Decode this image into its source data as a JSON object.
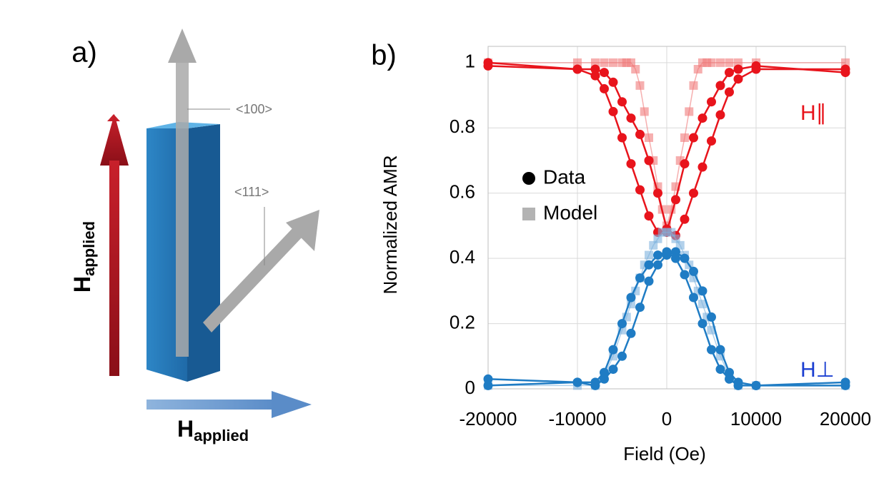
{
  "diagram": {
    "panel_label": "a)",
    "direction_100": "<100>",
    "direction_111": "<111>",
    "field_vertical": {
      "symbol": "H",
      "subscript": "applied"
    },
    "field_horizontal": {
      "symbol": "H",
      "subscript": "applied"
    }
  },
  "chart_data": {
    "type": "line",
    "panel_label": "b)",
    "x_label": "Field (Oe)",
    "y_label": "Normalized AMR",
    "xlim": [
      -20000,
      20000
    ],
    "ylim": [
      0,
      1.05
    ],
    "xticks": [
      -20000,
      -10000,
      0,
      10000,
      20000
    ],
    "yticks": [
      0,
      0.2,
      0.4,
      0.6,
      0.8,
      1
    ],
    "grid": true,
    "legend": [
      {
        "name": "Data",
        "marker": "circle",
        "color": "#000000"
      },
      {
        "name": "Model",
        "marker": "square",
        "color": "#b3b3b3"
      }
    ],
    "annotations": [
      {
        "text": "H∥",
        "color": "#e8141c"
      },
      {
        "text": "H⊥",
        "color": "#1b3fd1"
      }
    ],
    "series": [
      {
        "marker": "square",
        "color": "#f07a7a",
        "x": [
          -20000,
          -10000,
          -8000,
          -7000,
          -6000,
          -5000,
          -4500,
          -4000,
          -3500,
          -3000,
          -2500,
          -2000,
          -1500,
          -1000,
          -500,
          0,
          500,
          1000,
          1500,
          2000,
          2500,
          3000,
          3500,
          4000,
          4500,
          5000,
          6000,
          7000,
          8000,
          10000,
          20000
        ],
        "values": [
          1,
          1,
          1,
          1,
          1,
          1,
          1,
          1,
          0.98,
          0.93,
          0.85,
          0.77,
          0.7,
          0.62,
          0.55,
          0.5,
          0.55,
          0.62,
          0.7,
          0.77,
          0.85,
          0.93,
          0.98,
          1,
          1,
          1,
          1,
          1,
          1,
          1,
          1
        ]
      },
      {
        "marker": "circle",
        "color": "#e8141c",
        "x": [
          -20000,
          -10000,
          -8000,
          -7000,
          -6000,
          -5000,
          -4000,
          -3000,
          -2000,
          -1000,
          0,
          1000,
          2000,
          3000,
          4000,
          5000,
          6000,
          7000,
          8000,
          10000,
          20000
        ],
        "values": [
          1,
          0.98,
          0.98,
          0.97,
          0.94,
          0.88,
          0.83,
          0.78,
          0.7,
          0.6,
          0.49,
          0.47,
          0.52,
          0.6,
          0.68,
          0.76,
          0.84,
          0.91,
          0.95,
          0.98,
          0.98
        ]
      },
      {
        "marker": "circle",
        "color": "#e8141c",
        "x": [
          -20000,
          -10000,
          -8000,
          -7000,
          -6000,
          -5000,
          -4000,
          -3000,
          -2000,
          -1000,
          0,
          1000,
          2000,
          3000,
          4000,
          5000,
          6000,
          7000,
          8000,
          10000,
          20000
        ],
        "values": [
          0.99,
          0.98,
          0.96,
          0.92,
          0.85,
          0.77,
          0.69,
          0.61,
          0.53,
          0.48,
          0.48,
          0.58,
          0.69,
          0.77,
          0.83,
          0.88,
          0.93,
          0.97,
          0.98,
          0.99,
          0.97
        ]
      },
      {
        "marker": "square",
        "color": "#7fb2de",
        "x": [
          -20000,
          -10000,
          -8000,
          -7000,
          -6000,
          -5000,
          -4500,
          -4000,
          -3500,
          -3000,
          -2500,
          -2000,
          -1500,
          -1000,
          -500,
          0,
          500,
          1000,
          1500,
          2000,
          2500,
          3000,
          3500,
          4000,
          4500,
          5000,
          6000,
          7000,
          8000,
          10000,
          20000
        ],
        "values": [
          0.01,
          0.01,
          0.01,
          0.04,
          0.1,
          0.18,
          0.22,
          0.26,
          0.3,
          0.34,
          0.38,
          0.41,
          0.44,
          0.46,
          0.48,
          0.48,
          0.48,
          0.46,
          0.44,
          0.41,
          0.38,
          0.34,
          0.3,
          0.26,
          0.22,
          0.18,
          0.1,
          0.04,
          0.01,
          0.01,
          0.01
        ]
      },
      {
        "marker": "circle",
        "color": "#1f7cc4",
        "x": [
          -20000,
          -10000,
          -8000,
          -7000,
          -6000,
          -5000,
          -4000,
          -3000,
          -2000,
          -1000,
          0,
          1000,
          2000,
          3000,
          4000,
          5000,
          6000,
          7000,
          8000,
          10000,
          20000
        ],
        "values": [
          0.01,
          0.02,
          0.01,
          0.03,
          0.06,
          0.1,
          0.17,
          0.25,
          0.33,
          0.38,
          0.41,
          0.42,
          0.4,
          0.36,
          0.3,
          0.22,
          0.12,
          0.05,
          0.02,
          0.01,
          0.01
        ]
      },
      {
        "marker": "circle",
        "color": "#1f7cc4",
        "x": [
          -20000,
          -10000,
          -8000,
          -7000,
          -6000,
          -5000,
          -4000,
          -3000,
          -2000,
          -1000,
          0,
          1000,
          2000,
          3000,
          4000,
          5000,
          6000,
          7000,
          8000,
          10000,
          20000
        ],
        "values": [
          0.03,
          0.02,
          0.02,
          0.05,
          0.12,
          0.2,
          0.28,
          0.34,
          0.38,
          0.41,
          0.42,
          0.4,
          0.35,
          0.28,
          0.2,
          0.12,
          0.06,
          0.03,
          0.01,
          0.01,
          0.02
        ]
      }
    ]
  }
}
